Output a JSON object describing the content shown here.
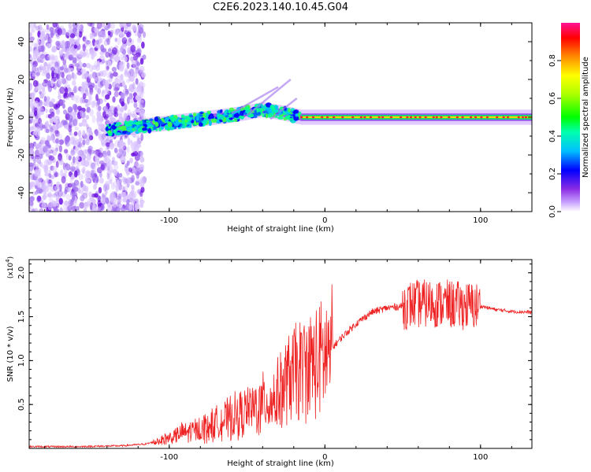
{
  "figure": {
    "title": "C2E6.2023.140.10.45.G04"
  },
  "chart_data": [
    {
      "type": "heatmap",
      "title": "C2E6.2023.140.10.45.G04",
      "xlabel": "Height of straight line (km)",
      "ylabel": "Frequency (Hz)",
      "xlim": [
        -190,
        133
      ],
      "ylim": [
        -50,
        50
      ],
      "x_ticks": [
        -100,
        0,
        100
      ],
      "x_tick_labels": [
        "-100",
        "0",
        "100"
      ],
      "y_ticks": [
        -40,
        -20,
        0,
        20,
        40
      ],
      "y_tick_labels": [
        "-40",
        "-20",
        "0",
        "20",
        "40"
      ],
      "colorbar": {
        "label": "Normalized spectral amplitude",
        "range": [
          0,
          1
        ],
        "ticks": [
          0.0,
          0.2,
          0.4,
          0.6,
          0.8
        ],
        "tick_labels": [
          "0.0",
          "0.2",
          "0.4",
          "0.6",
          "0.8"
        ],
        "colors": [
          "#ffffff",
          "#c8a0ff",
          "#8a2be2",
          "#0000ff",
          "#00bfff",
          "#00ff7f",
          "#7fff00",
          "#ffff00",
          "#ff8c00",
          "#ff0000",
          "#ff1493"
        ]
      },
      "ridge": {
        "description_points_x": [
          -140,
          -120,
          -100,
          -80,
          -60,
          -40,
          -25,
          -15,
          0,
          50,
          100,
          133
        ],
        "description_points_y": [
          -7,
          -5,
          -3,
          -1,
          1,
          4,
          2,
          0,
          0,
          0,
          0,
          0
        ],
        "amplitude": [
          0.45,
          0.5,
          0.5,
          0.45,
          0.5,
          0.55,
          0.6,
          0.75,
          0.9,
          0.85,
          0.85,
          0.85
        ]
      }
    },
    {
      "type": "line",
      "xlabel": "Height of straight line (km)",
      "ylabel": "SNR (10 * v/v)",
      "y_scale_label": "(x10",
      "y_scale_exp": "4",
      "y_scale_close": ")",
      "xlim": [
        -190,
        133
      ],
      "ylim": [
        0,
        2.15
      ],
      "x_ticks": [
        -100,
        0,
        100
      ],
      "x_tick_labels": [
        "-100",
        "0",
        "100"
      ],
      "y_ticks": [
        0.5,
        1.0,
        1.5,
        2.0
      ],
      "y_tick_labels": [
        "0.5",
        "1.0",
        "1.5",
        "2.0"
      ],
      "color": "#ee2222",
      "series": [
        {
          "name": "SNR",
          "x": [
            -190,
            -160,
            -130,
            -115,
            -100,
            -90,
            -80,
            -70,
            -60,
            -50,
            -40,
            -30,
            -25,
            -20,
            -15,
            -10,
            -5,
            0,
            10,
            20,
            30,
            40,
            50,
            55,
            65,
            75,
            85,
            95,
            100,
            105,
            110,
            120,
            133
          ],
          "y": [
            0.02,
            0.02,
            0.03,
            0.05,
            0.12,
            0.18,
            0.22,
            0.28,
            0.35,
            0.42,
            0.5,
            0.6,
            0.75,
            0.85,
            0.9,
            0.95,
            0.98,
            1.05,
            1.25,
            1.42,
            1.55,
            1.6,
            1.62,
            1.64,
            1.65,
            1.65,
            1.63,
            1.62,
            1.62,
            1.6,
            1.58,
            1.56,
            1.55
          ]
        }
      ]
    }
  ]
}
